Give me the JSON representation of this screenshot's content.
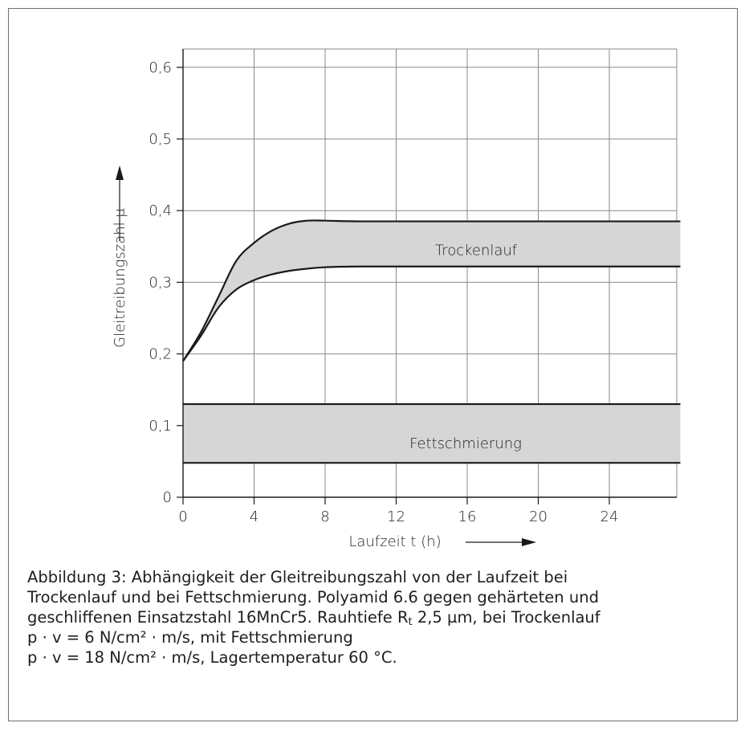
{
  "chart_data": {
    "type": "area",
    "xlabel": "Laufzeit t (h)",
    "ylabel": "Gleitreibungszahl μ",
    "xlim": [
      0,
      28
    ],
    "ylim": [
      0,
      0.65
    ],
    "x_ticks": [
      0,
      4,
      8,
      12,
      16,
      20,
      24
    ],
    "x_tick_labels": [
      "0",
      "4",
      "8",
      "12",
      "16",
      "20",
      "24"
    ],
    "y_ticks": [
      0,
      0.1,
      0.2,
      0.3,
      0.4,
      0.5,
      0.6
    ],
    "y_tick_labels": [
      "0",
      "0,1",
      "0,2",
      "0,3",
      "0,4",
      "0,5",
      "0,6"
    ],
    "grid": true,
    "series": [
      {
        "name": "Trockenlauf",
        "upper": {
          "x": [
            0,
            1,
            2,
            3,
            4,
            5,
            6,
            7,
            8,
            10,
            14,
            20,
            28
          ],
          "y": [
            0.19,
            0.23,
            0.28,
            0.33,
            0.355,
            0.372,
            0.382,
            0.386,
            0.386,
            0.385,
            0.385,
            0.385,
            0.385
          ]
        },
        "lower": {
          "x": [
            0,
            1,
            2,
            3,
            4,
            5,
            6,
            7,
            8,
            10,
            14,
            20,
            28
          ],
          "y": [
            0.19,
            0.225,
            0.265,
            0.29,
            0.303,
            0.311,
            0.316,
            0.319,
            0.321,
            0.322,
            0.322,
            0.322,
            0.322
          ]
        }
      },
      {
        "name": "Fettschmierung",
        "upper": {
          "x": [
            0,
            28
          ],
          "y": [
            0.13,
            0.13
          ]
        },
        "lower": {
          "x": [
            0,
            28
          ],
          "y": [
            0.048,
            0.048
          ]
        }
      }
    ]
  },
  "colors": {
    "band_fill": "#d6d6d6",
    "line": "#1a1a1a",
    "grid": "#8a8a8a"
  },
  "caption": {
    "line1": "Abbildung 3: Abhängigkeit der Gleitreibungszahl von der Laufzeit bei",
    "line2": "Trockenlauf und bei Fettschmierung. Polyamid 6.6 gegen gehärteten und",
    "line3_pre": "geschliffenen Einsatzstahl 16MnCr5. Rauhtiefe R",
    "line3_sub": "t",
    "line3_post": " 2,5 µm, bei Trockenlauf",
    "line4": "p · v = 6 N/cm² · m/s, mit Fettschmierung",
    "line5": "p · v = 18 N/cm² · m/s, Lagertemperatur 60 °C."
  }
}
